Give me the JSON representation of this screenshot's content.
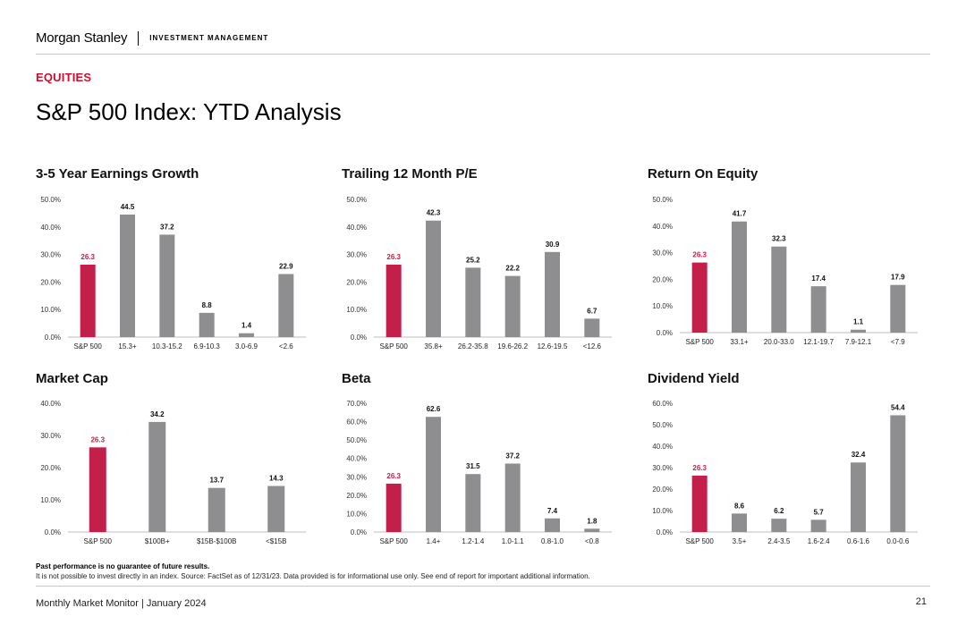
{
  "header": {
    "brand": "Morgan Stanley",
    "division": "INVESTMENT MANAGEMENT"
  },
  "section_label": "EQUITIES",
  "page_title": "S&P 500 Index: YTD Analysis",
  "colors": {
    "highlight": "#c41e4a",
    "bar": "#8e8e90",
    "accent": "#c8102e"
  },
  "chart_data": [
    {
      "type": "bar",
      "title": "3-5 Year Earnings Growth",
      "categories": [
        "S&P 500",
        "15.3+",
        "10.3-15.2",
        "6.9-10.3",
        "3.0-6.9",
        "<2.6"
      ],
      "values": [
        26.3,
        44.5,
        37.2,
        8.8,
        1.4,
        22.9
      ],
      "ylim": [
        0,
        50
      ],
      "yticks": [
        "0.0%",
        "10.0%",
        "20.0%",
        "30.0%",
        "40.0%",
        "50.0%"
      ]
    },
    {
      "type": "bar",
      "title": "Trailing 12 Month P/E",
      "categories": [
        "S&P 500",
        "35.8+",
        "26.2-35.8",
        "19.6-26.2",
        "12.6-19.5",
        "<12.6"
      ],
      "values": [
        26.3,
        42.3,
        25.2,
        22.2,
        30.9,
        6.7
      ],
      "ylim": [
        0,
        50
      ],
      "yticks": [
        "0.0%",
        "10.0%",
        "20.0%",
        "30.0%",
        "40.0%",
        "50.0%"
      ]
    },
    {
      "type": "bar",
      "title": "Return On Equity",
      "categories": [
        "S&P 500",
        "33.1+",
        "20.0-33.0",
        "12.1-19.7",
        "7.9-12.1",
        "<7.9"
      ],
      "values": [
        26.3,
        41.7,
        32.3,
        17.4,
        1.1,
        17.9
      ],
      "ylim": [
        0,
        50
      ],
      "yticks": [
        "0.0%",
        "10.0%",
        "20.0%",
        "30.0%",
        "40.0%",
        "50.0%"
      ]
    },
    {
      "type": "bar",
      "title": "Market Cap",
      "categories": [
        "S&P 500",
        "$100B+",
        "$15B-$100B",
        "<$15B"
      ],
      "values": [
        26.3,
        34.2,
        13.7,
        14.3
      ],
      "ylim": [
        0,
        40
      ],
      "yticks": [
        "0.0%",
        "10.0%",
        "20.0%",
        "30.0%",
        "40.0%"
      ]
    },
    {
      "type": "bar",
      "title": "Beta",
      "categories": [
        "S&P 500",
        "1.4+",
        "1.2-1.4",
        "1.0-1.1",
        "0.8-1.0",
        "<0.8"
      ],
      "values": [
        26.3,
        62.6,
        31.5,
        37.2,
        7.4,
        1.8
      ],
      "ylim": [
        0,
        70
      ],
      "yticks": [
        "0.0%",
        "10.0%",
        "20.0%",
        "30.0%",
        "40.0%",
        "50.0%",
        "60.0%",
        "70.0%"
      ]
    },
    {
      "type": "bar",
      "title": "Dividend Yield",
      "categories": [
        "S&P 500",
        "3.5+",
        "2.4-3.5",
        "1.6-2.4",
        "0.6-1.6",
        "0.0-0.6"
      ],
      "values": [
        26.3,
        8.6,
        6.2,
        5.7,
        32.4,
        54.4
      ],
      "ylim": [
        0,
        60
      ],
      "yticks": [
        "0.0%",
        "10.0%",
        "20.0%",
        "30.0%",
        "40.0%",
        "50.0%",
        "60.0%"
      ]
    }
  ],
  "footnote_bold": "Past performance is no guarantee of future results.",
  "footnote": "It is not possible to invest directly in an index. Source: FactSet as of 12/31/23. Data provided is for informational use only. See end of report for important additional information.",
  "footer": {
    "left": "Monthly Market Monitor | January 2024",
    "page": "21"
  }
}
